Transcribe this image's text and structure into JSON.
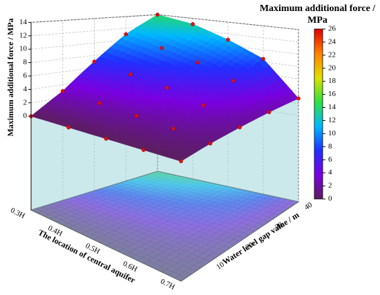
{
  "chart_data": {
    "type": "surface3d",
    "zlabel": "Maximum additional force / MPa",
    "xlabel": "The location of central aquifer",
    "ylabel": "Water level gap value / m",
    "x": [
      0.3,
      0.4,
      0.5,
      0.6,
      0.7
    ],
    "y": [
      0,
      10,
      20,
      30,
      40
    ],
    "z": [
      [
        0,
        3,
        7,
        11,
        14
      ],
      [
        0,
        2.5,
        6,
        9.5,
        13
      ],
      [
        0,
        2,
        5,
        8,
        11
      ],
      [
        0,
        1.5,
        3.5,
        6,
        8.5
      ],
      [
        0,
        0.8,
        1.5,
        2.2,
        2.8
      ]
    ],
    "xlim": [
      0.3,
      0.7
    ],
    "xticks": [
      {
        "value": 0.3,
        "label": "0.3H"
      },
      {
        "value": 0.4,
        "label": "0.4H"
      },
      {
        "value": 0.5,
        "label": "0.5H"
      },
      {
        "value": 0.6,
        "label": "0.6H"
      },
      {
        "value": 0.7,
        "label": "0.7H"
      }
    ],
    "ylim": [
      0,
      40
    ],
    "yticks": [
      10,
      20,
      30,
      40
    ],
    "zlim": [
      -14,
      14
    ],
    "zticks": [
      0,
      2,
      4,
      6,
      8,
      10,
      12,
      14
    ],
    "point_color": "#e01010",
    "colorbar": {
      "title": "Maximum additional force / MPa",
      "lim": [
        0,
        26
      ],
      "ticks": [
        0,
        2,
        4,
        6,
        8,
        10,
        12,
        14,
        16,
        18,
        20,
        22,
        24,
        26
      ],
      "colors": [
        "#5b1f5f",
        "#7a00e0",
        "#2030ff",
        "#00b8ff",
        "#30e040",
        "#e0e000",
        "#ff8000",
        "#e00000"
      ]
    }
  }
}
